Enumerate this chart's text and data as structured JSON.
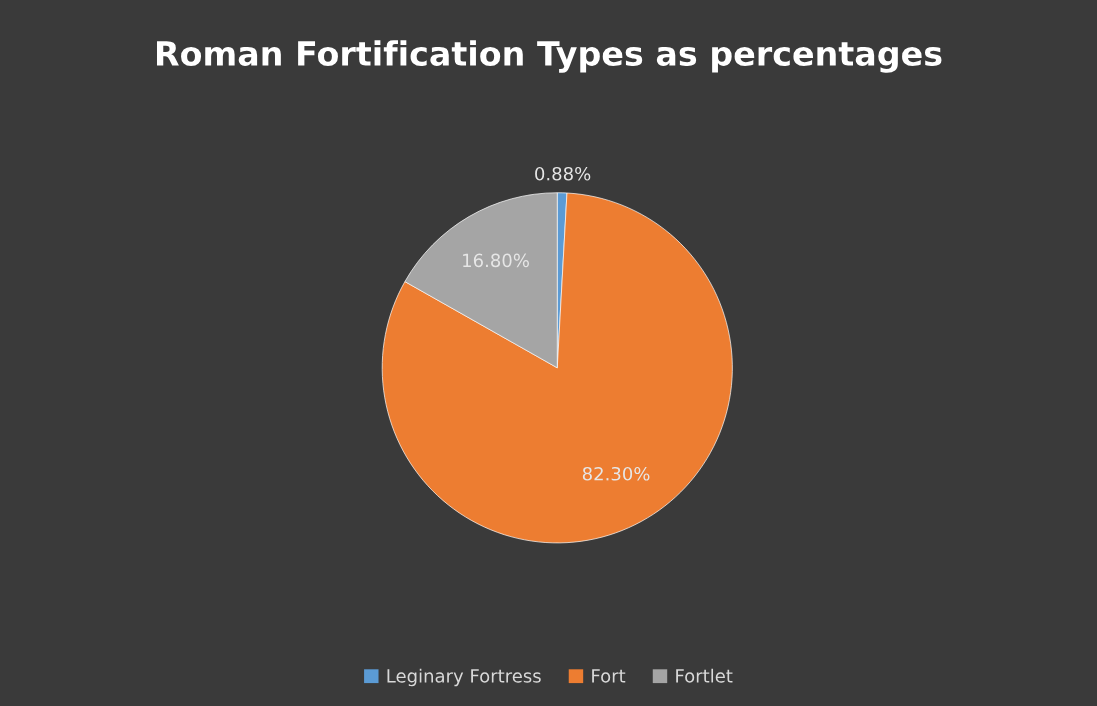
{
  "chart_data": {
    "type": "pie",
    "title": "Roman Fortification Types as percentages",
    "categories": [
      "Leginary Fortress",
      "Fort",
      "Fortlet"
    ],
    "values": [
      0.88,
      82.3,
      16.8
    ],
    "colors": [
      "#5b9bd5",
      "#ed7d31",
      "#a5a5a5"
    ],
    "value_labels": [
      "0.88%",
      "82.30%",
      "16.80%"
    ],
    "legend": "bottom"
  }
}
